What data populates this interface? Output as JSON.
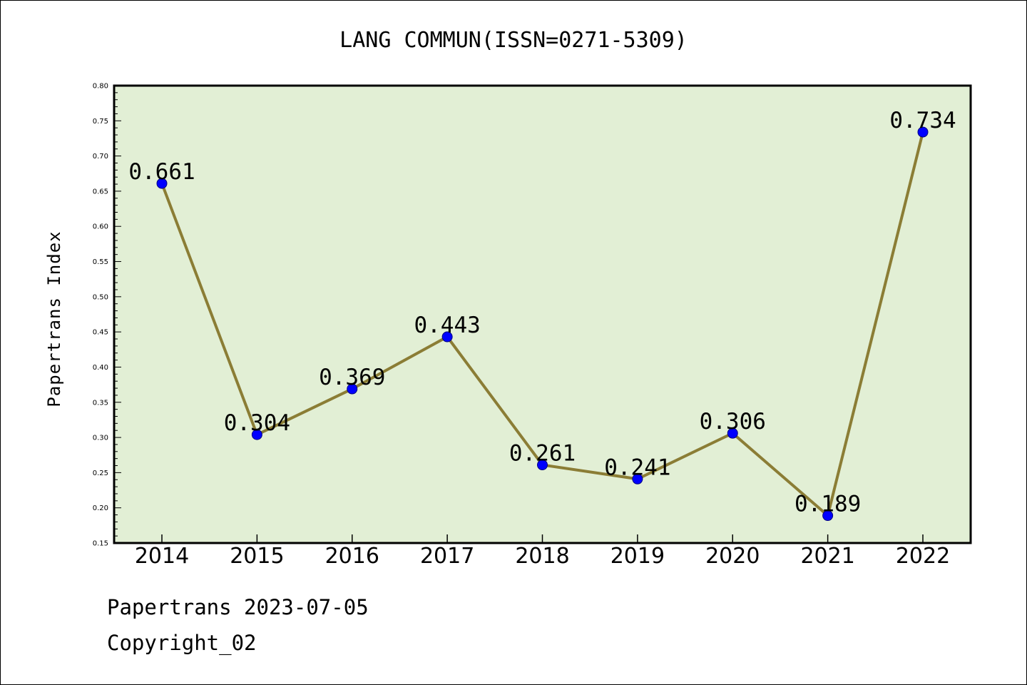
{
  "footer": {
    "line1": "Papertrans 2023-07-05",
    "line2": "Copyright_02"
  },
  "colors": {
    "plot_background": "#e2efd5",
    "line": "#8b7d35",
    "marker": "#0000ff",
    "marker_edge": "#000080"
  },
  "chart_data": {
    "type": "line",
    "title": "LANG COMMUN(ISSN=0271-5309)",
    "xlabel": "",
    "ylabel": "Papertrans Index",
    "categories": [
      "2014",
      "2015",
      "2016",
      "2017",
      "2018",
      "2019",
      "2020",
      "2021",
      "2022"
    ],
    "series": [
      {
        "values": [
          0.661,
          0.304,
          0.369,
          0.443,
          0.261,
          0.241,
          0.306,
          0.189,
          0.734
        ],
        "labels": [
          "0.661",
          "0.304",
          "0.369",
          "0.443",
          "0.261",
          "0.241",
          "0.306",
          "0.189",
          "0.734"
        ]
      }
    ],
    "ylim": [
      0.15,
      0.8
    ],
    "yticks": [
      "0.15",
      "0.20",
      "0.25",
      "0.30",
      "0.35",
      "0.40",
      "0.45",
      "0.50",
      "0.55",
      "0.60",
      "0.65",
      "0.70",
      "0.75",
      "0.80"
    ],
    "grid": false,
    "legend": "none"
  }
}
